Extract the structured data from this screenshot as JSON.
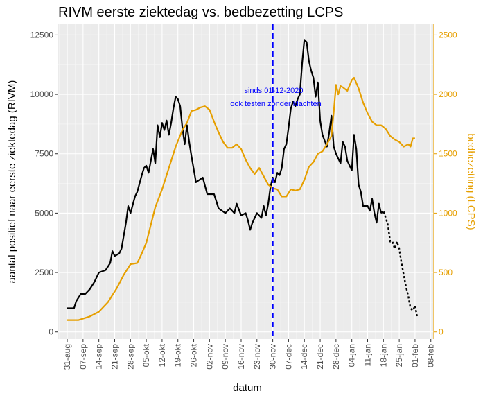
{
  "chart_data": {
    "type": "line",
    "title": "RIVM eerste ziektedag vs. bedbezetting LCPS",
    "xlabel": "datum",
    "ylabel_left": "aantal positief naar eerste ziektedag (RIVM)",
    "ylabel_right": "bedbezetting (LCPS)",
    "x_domain_days": [
      -4,
      162
    ],
    "x_ticks": [
      "31-aug",
      "07-sep",
      "14-sep",
      "21-sep",
      "28-sep",
      "05-okt",
      "12-okt",
      "19-okt",
      "26-okt",
      "02-nov",
      "09-nov",
      "16-nov",
      "23-nov",
      "30-nov",
      "07-dec",
      "14-dec",
      "21-dec",
      "28-dec",
      "04-jan",
      "11-jan",
      "18-jan",
      "25-jan",
      "01-feb",
      "08-feb"
    ],
    "ylim_left": [
      -300,
      12950
    ],
    "ylim_right": [
      -60,
      2590
    ],
    "yticks_left": [
      "0",
      "2500",
      "5000",
      "7500",
      "10000",
      "12500"
    ],
    "yticks_right": [
      "0",
      "500",
      "1000",
      "1500",
      "2000",
      "2500"
    ],
    "series": [
      {
        "name": "RIVM eerste ziektedag",
        "axis": "left",
        "color": "#000000",
        "style": "solid",
        "points": [
          [
            0,
            1000
          ],
          [
            3,
            1000
          ],
          [
            4,
            1300
          ],
          [
            6,
            1600
          ],
          [
            8,
            1600
          ],
          [
            10,
            1800
          ],
          [
            12,
            2100
          ],
          [
            14,
            2500
          ],
          [
            17,
            2600
          ],
          [
            19,
            2900
          ],
          [
            20,
            3400
          ],
          [
            21,
            3200
          ],
          [
            23,
            3300
          ],
          [
            24,
            3500
          ],
          [
            26,
            4600
          ],
          [
            27,
            5300
          ],
          [
            28,
            5000
          ],
          [
            30,
            5700
          ],
          [
            31,
            5900
          ],
          [
            33,
            6600
          ],
          [
            34,
            6900
          ],
          [
            35,
            7000
          ],
          [
            36,
            6700
          ],
          [
            38,
            7700
          ],
          [
            39,
            7100
          ],
          [
            40,
            8700
          ],
          [
            41,
            8200
          ],
          [
            42,
            8800
          ],
          [
            43,
            8500
          ],
          [
            44,
            8900
          ],
          [
            45,
            8300
          ],
          [
            46,
            8800
          ],
          [
            47,
            9400
          ],
          [
            48,
            9900
          ],
          [
            49,
            9800
          ],
          [
            50,
            9500
          ],
          [
            51,
            8600
          ],
          [
            52,
            7900
          ],
          [
            53,
            8700
          ],
          [
            54,
            8000
          ],
          [
            55,
            7400
          ],
          [
            57,
            6300
          ],
          [
            60,
            6500
          ],
          [
            62,
            5800
          ],
          [
            65,
            5800
          ],
          [
            67,
            5200
          ],
          [
            70,
            5000
          ],
          [
            72,
            5200
          ],
          [
            74,
            5000
          ],
          [
            75,
            5400
          ],
          [
            77,
            4900
          ],
          [
            79,
            5000
          ],
          [
            80,
            4700
          ],
          [
            81,
            4300
          ],
          [
            82,
            4600
          ],
          [
            84,
            5000
          ],
          [
            86,
            4800
          ],
          [
            87,
            5300
          ],
          [
            88,
            4900
          ],
          [
            89,
            5400
          ],
          [
            90,
            6100
          ],
          [
            91,
            6500
          ],
          [
            92,
            6300
          ],
          [
            93,
            6700
          ],
          [
            94,
            6600
          ],
          [
            95,
            6900
          ],
          [
            96,
            7700
          ],
          [
            97,
            7900
          ],
          [
            98,
            8600
          ],
          [
            99,
            9400
          ],
          [
            100,
            9700
          ],
          [
            101,
            9500
          ],
          [
            102,
            9800
          ],
          [
            103,
            10000
          ],
          [
            104,
            11300
          ],
          [
            105,
            12300
          ],
          [
            106,
            12200
          ],
          [
            107,
            11400
          ],
          [
            108,
            11000
          ],
          [
            109,
            10700
          ],
          [
            110,
            9900
          ],
          [
            111,
            10500
          ],
          [
            112,
            8900
          ],
          [
            113,
            8300
          ],
          [
            115,
            7800
          ],
          [
            116,
            8400
          ],
          [
            117,
            9100
          ],
          [
            118,
            7800
          ],
          [
            119,
            7500
          ],
          [
            120,
            7300
          ],
          [
            121,
            7100
          ],
          [
            122,
            8000
          ],
          [
            123,
            7800
          ],
          [
            124,
            7200
          ],
          [
            126,
            6800
          ],
          [
            127,
            8300
          ],
          [
            128,
            7700
          ],
          [
            129,
            6200
          ],
          [
            130,
            5900
          ],
          [
            131,
            5300
          ],
          [
            133,
            5300
          ],
          [
            134,
            5100
          ],
          [
            135,
            5600
          ],
          [
            136,
            5000
          ],
          [
            137,
            4600
          ],
          [
            138,
            5400
          ],
          [
            139,
            5000
          ]
        ]
      },
      {
        "name": "RIVM eerste ziektedag (voorlopig)",
        "axis": "left",
        "color": "#000000",
        "style": "dotted",
        "points": [
          [
            139,
            5000
          ],
          [
            140,
            5100
          ],
          [
            141,
            4800
          ],
          [
            142,
            4500
          ],
          [
            143,
            3800
          ],
          [
            144,
            3800
          ],
          [
            145,
            3500
          ],
          [
            146,
            3800
          ],
          [
            147,
            3500
          ],
          [
            148,
            2900
          ],
          [
            149,
            2400
          ],
          [
            150,
            1900
          ],
          [
            151,
            1500
          ],
          [
            152,
            1000
          ],
          [
            153,
            900
          ],
          [
            154,
            1100
          ],
          [
            155,
            600
          ]
        ]
      },
      {
        "name": "bedbezetting LCPS",
        "axis": "right",
        "color": "#E69F00",
        "style": "solid",
        "points": [
          [
            0,
            100
          ],
          [
            5,
            100
          ],
          [
            10,
            130
          ],
          [
            14,
            170
          ],
          [
            18,
            250
          ],
          [
            22,
            370
          ],
          [
            25,
            480
          ],
          [
            28,
            570
          ],
          [
            31,
            580
          ],
          [
            33,
            660
          ],
          [
            35,
            750
          ],
          [
            37,
            900
          ],
          [
            39,
            1050
          ],
          [
            42,
            1200
          ],
          [
            45,
            1380
          ],
          [
            48,
            1560
          ],
          [
            51,
            1700
          ],
          [
            53,
            1760
          ],
          [
            55,
            1860
          ],
          [
            57,
            1870
          ],
          [
            59,
            1890
          ],
          [
            61,
            1900
          ],
          [
            63,
            1870
          ],
          [
            65,
            1770
          ],
          [
            67,
            1680
          ],
          [
            69,
            1600
          ],
          [
            71,
            1550
          ],
          [
            73,
            1550
          ],
          [
            75,
            1580
          ],
          [
            77,
            1540
          ],
          [
            79,
            1450
          ],
          [
            81,
            1380
          ],
          [
            83,
            1330
          ],
          [
            85,
            1380
          ],
          [
            87,
            1310
          ],
          [
            89,
            1240
          ],
          [
            91,
            1210
          ],
          [
            93,
            1200
          ],
          [
            95,
            1140
          ],
          [
            97,
            1140
          ],
          [
            99,
            1200
          ],
          [
            101,
            1190
          ],
          [
            103,
            1200
          ],
          [
            105,
            1280
          ],
          [
            107,
            1390
          ],
          [
            109,
            1430
          ],
          [
            111,
            1500
          ],
          [
            113,
            1520
          ],
          [
            115,
            1580
          ],
          [
            117,
            1650
          ],
          [
            118,
            1850
          ],
          [
            119,
            2080
          ],
          [
            120,
            2000
          ],
          [
            121,
            2070
          ],
          [
            122,
            2060
          ],
          [
            124,
            2030
          ],
          [
            126,
            2120
          ],
          [
            127,
            2140
          ],
          [
            129,
            2050
          ],
          [
            131,
            1930
          ],
          [
            133,
            1840
          ],
          [
            135,
            1770
          ],
          [
            137,
            1740
          ],
          [
            139,
            1740
          ],
          [
            141,
            1710
          ],
          [
            143,
            1650
          ],
          [
            145,
            1620
          ],
          [
            147,
            1600
          ],
          [
            149,
            1560
          ],
          [
            151,
            1580
          ],
          [
            152,
            1560
          ],
          [
            153,
            1630
          ],
          [
            154,
            1630
          ]
        ]
      }
    ],
    "vline": {
      "day": 91,
      "color": "#0000ff",
      "style": "dashed"
    },
    "annotations": [
      "sinds 01-12-2020",
      "ook testen zonder klachten"
    ]
  }
}
